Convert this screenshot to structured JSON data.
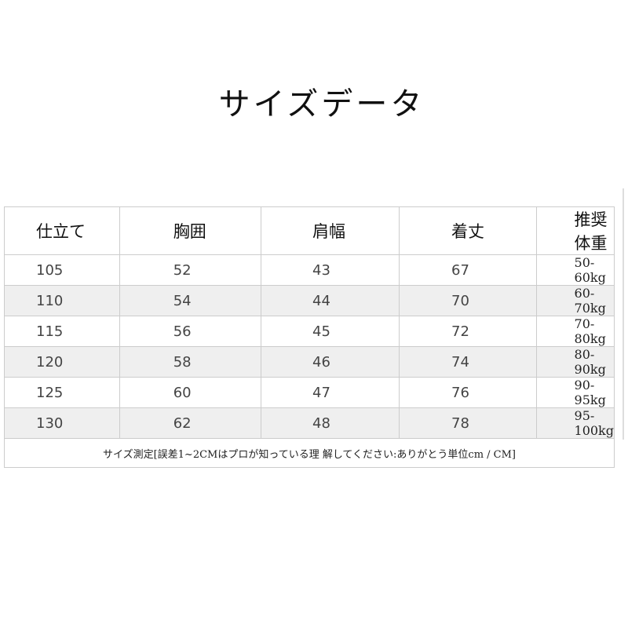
{
  "title": "サイズデータ",
  "table": {
    "headers": [
      "仕立て",
      "胸囲",
      "肩幅",
      "着丈",
      "推奨体重"
    ],
    "rows": [
      [
        "105",
        "52",
        "43",
        "67",
        "50-60kg"
      ],
      [
        "110",
        "54",
        "44",
        "70",
        "60-70kg"
      ],
      [
        "115",
        "56",
        "45",
        "72",
        "70-80kg"
      ],
      [
        "120",
        "58",
        "46",
        "74",
        "80-90kg"
      ],
      [
        "125",
        "60",
        "47",
        "76",
        "90-95kg"
      ],
      [
        "130",
        "62",
        "48",
        "78",
        "95-100kg"
      ]
    ],
    "footnote": "サイズ測定[誤差1~2CMはプロが知っている理 解してください:ありがとう単位cm / CM]"
  },
  "colors": {
    "shaded_row": "#efefef",
    "border": "#cccccc"
  }
}
